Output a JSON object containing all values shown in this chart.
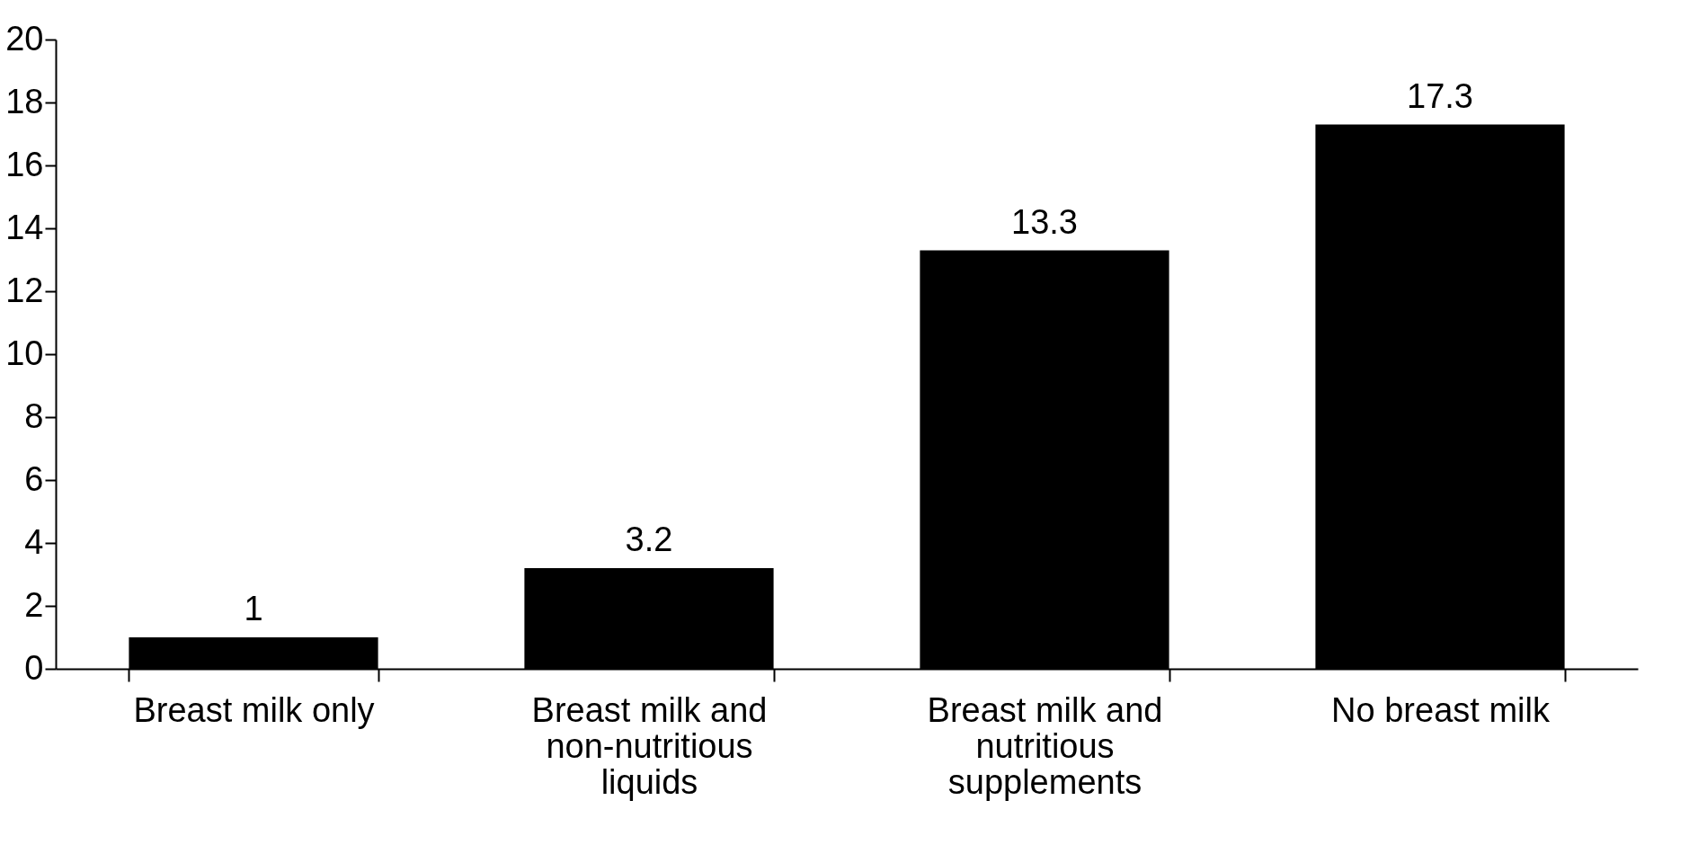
{
  "chart_data": {
    "type": "bar",
    "categories": [
      "Breast milk only",
      "Breast milk and non-nutritious liquids",
      "Breast milk and nutritious supplements",
      "No breast milk"
    ],
    "values": [
      1,
      3.2,
      13.3,
      17.3
    ],
    "color": "#000000",
    "ylim": [
      0,
      20
    ],
    "yticks": [
      0,
      2,
      4,
      6,
      8,
      10,
      12,
      14,
      16,
      18,
      20
    ],
    "grid": false,
    "data_labels": true
  }
}
